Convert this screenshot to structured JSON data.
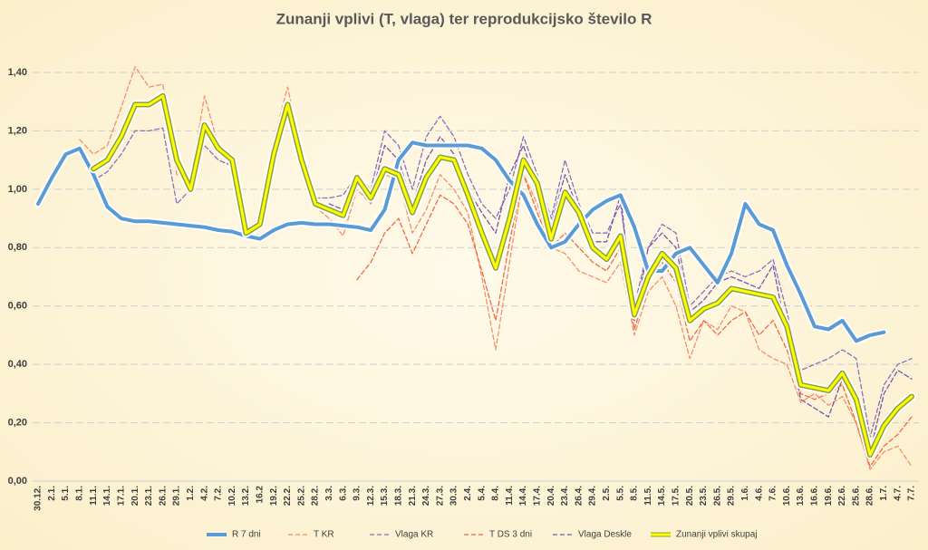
{
  "chart_data": {
    "type": "line",
    "title": "Zunanji vplivi (T, vlaga) ter reprodukcijsko število R",
    "categories": [
      "30.12.",
      "2.1.",
      "5.1.",
      "8.1.",
      "11.1.",
      "14.1.",
      "17.1.",
      "20.1.",
      "23.1.",
      "26.1.",
      "29.1.",
      "1.2.",
      "4.2.",
      "7.2.",
      "10.2.",
      "13.2.",
      "16.2",
      "19.2.",
      "22.2.",
      "25.2.",
      "28.2.",
      "3.3.",
      "6.3.",
      "9.3.",
      "12.3.",
      "15.3.",
      "18.3.",
      "21.3.",
      "24.3.",
      "27.3.",
      "30.3.",
      "2.4.",
      "5.4.",
      "8.4.",
      "11.4.",
      "14.4.",
      "17.4.",
      "20.4.",
      "23.4.",
      "26.4.",
      "29.4.",
      "2.5.",
      "5.5.",
      "8.5.",
      "11.5.",
      "14.5.",
      "17.5.",
      "20.5.",
      "23.5.",
      "26.5.",
      "29.5.",
      "1.6.",
      "4.6.",
      "7.6.",
      "10.6.",
      "13.6.",
      "16.6.",
      "19.6.",
      "22.6.",
      "25.6.",
      "28.6.",
      "1.7.",
      "4.7.",
      "7.7."
    ],
    "ylim": [
      0,
      1.4
    ],
    "yticks": [
      {
        "value": 0,
        "label": "0,00"
      },
      {
        "value": 0.2,
        "label": "0,20"
      },
      {
        "value": 0.4,
        "label": "0,40"
      },
      {
        "value": 0.6,
        "label": "0,60"
      },
      {
        "value": 0.8,
        "label": "0,80"
      },
      {
        "value": 1.0,
        "label": "1,00"
      },
      {
        "value": 1.2,
        "label": "1,20"
      },
      {
        "value": 1.4,
        "label": "1,40"
      }
    ],
    "grid": true,
    "legend": "bottom",
    "series": [
      {
        "name": "R 7 dni",
        "color": "#5b9bd5",
        "style": "thick",
        "values": [
          0.95,
          1.04,
          1.12,
          1.14,
          1.05,
          0.94,
          0.9,
          0.89,
          0.89,
          0.885,
          0.88,
          0.875,
          0.87,
          0.86,
          0.855,
          0.84,
          0.83,
          0.86,
          0.88,
          0.885,
          0.88,
          0.88,
          0.875,
          0.87,
          0.86,
          0.93,
          1.1,
          1.16,
          1.15,
          1.15,
          1.15,
          1.15,
          1.14,
          1.1,
          1.03,
          0.98,
          0.88,
          0.8,
          0.82,
          0.88,
          0.93,
          0.96,
          0.98,
          0.87,
          0.72,
          0.72,
          0.78,
          0.8,
          0.74,
          0.68,
          0.78,
          0.95,
          0.88,
          0.86,
          0.74,
          0.64,
          0.53,
          0.52,
          0.55,
          0.48,
          0.5,
          0.51,
          null,
          null
        ]
      },
      {
        "name": "T KR",
        "color": "#f4906c",
        "style": "dashed",
        "values": [
          null,
          null,
          null,
          1.17,
          1.12,
          1.15,
          1.28,
          1.42,
          1.35,
          1.36,
          1.05,
          1.03,
          1.32,
          1.15,
          1.1,
          0.86,
          0.9,
          1.17,
          1.35,
          1.12,
          0.94,
          0.9,
          0.84,
          1.0,
          0.95,
          1.05,
          1.03,
          0.85,
          0.93,
          1.05,
          1.0,
          0.92,
          0.7,
          0.45,
          0.75,
          1.05,
          0.95,
          0.8,
          0.78,
          0.72,
          0.7,
          0.68,
          0.75,
          0.5,
          0.65,
          0.7,
          0.6,
          0.42,
          0.55,
          0.52,
          0.6,
          0.58,
          0.45,
          0.42,
          0.4,
          0.27,
          0.3,
          0.26,
          0.29,
          0.2,
          0.04,
          0.1,
          0.12,
          0.05
        ]
      },
      {
        "name": "Vlaga KR",
        "color": "#8e6fbf",
        "style": "dashed",
        "values": [
          null,
          null,
          null,
          1.15,
          1.03,
          1.06,
          1.12,
          1.2,
          1.2,
          1.21,
          0.95,
          1.0,
          1.15,
          1.1,
          1.08,
          0.84,
          0.88,
          1.1,
          1.27,
          1.08,
          0.97,
          0.97,
          0.98,
          1.05,
          1.0,
          1.2,
          1.15,
          1.0,
          1.18,
          1.25,
          1.18,
          1.05,
          0.95,
          0.9,
          1.0,
          1.18,
          1.05,
          0.9,
          1.1,
          0.95,
          0.85,
          0.85,
          0.95,
          0.6,
          0.8,
          0.88,
          0.85,
          0.6,
          0.65,
          0.7,
          0.72,
          0.7,
          0.72,
          0.76,
          0.58,
          0.38,
          0.4,
          0.42,
          0.45,
          0.42,
          0.15,
          0.33,
          0.4,
          0.42
        ]
      },
      {
        "name": "T DS 3 dni",
        "color": "#f06a4a",
        "style": "dashed",
        "values": [
          null,
          null,
          null,
          null,
          null,
          null,
          null,
          null,
          null,
          null,
          null,
          null,
          null,
          null,
          null,
          null,
          null,
          null,
          null,
          null,
          null,
          null,
          null,
          0.69,
          0.75,
          0.85,
          0.9,
          0.78,
          0.88,
          0.98,
          0.95,
          0.88,
          0.72,
          0.55,
          0.82,
          1.05,
          0.92,
          0.8,
          0.85,
          0.8,
          0.75,
          0.72,
          0.8,
          0.52,
          0.68,
          0.75,
          0.68,
          0.48,
          0.55,
          0.5,
          0.55,
          0.58,
          0.5,
          0.55,
          0.45,
          0.3,
          0.28,
          0.3,
          0.33,
          0.2,
          0.05,
          0.12,
          0.16,
          0.22
        ]
      },
      {
        "name": "Vlaga Deskle",
        "color": "#7a55b0",
        "style": "dashed",
        "values": [
          null,
          null,
          null,
          null,
          null,
          null,
          null,
          null,
          null,
          null,
          null,
          null,
          null,
          null,
          null,
          null,
          null,
          null,
          null,
          null,
          null,
          0.95,
          0.93,
          1.02,
          0.97,
          1.15,
          1.1,
          0.95,
          1.1,
          1.18,
          1.12,
          1.0,
          0.92,
          0.85,
          1.05,
          1.15,
          1.0,
          0.88,
          1.05,
          0.92,
          0.82,
          0.82,
          0.98,
          0.55,
          0.8,
          0.85,
          0.8,
          0.58,
          0.62,
          0.68,
          0.7,
          0.68,
          0.66,
          0.74,
          0.5,
          0.28,
          0.25,
          0.22,
          0.35,
          0.28,
          0.1,
          0.3,
          0.38,
          0.35
        ]
      },
      {
        "name": "Zunanji vplivi skupaj",
        "color": "#ffff00",
        "style": "outlined",
        "values": [
          null,
          null,
          null,
          null,
          1.07,
          1.1,
          1.18,
          1.29,
          1.29,
          1.32,
          1.1,
          1.0,
          1.22,
          1.14,
          1.1,
          0.85,
          0.88,
          1.12,
          1.29,
          1.1,
          0.95,
          0.93,
          0.91,
          1.04,
          0.97,
          1.07,
          1.05,
          0.92,
          1.04,
          1.11,
          1.1,
          0.98,
          0.85,
          0.73,
          0.9,
          1.1,
          1.02,
          0.83,
          0.99,
          0.92,
          0.8,
          0.76,
          0.84,
          0.57,
          0.7,
          0.78,
          0.73,
          0.55,
          0.59,
          0.61,
          0.66,
          0.65,
          0.64,
          0.63,
          0.53,
          0.33,
          0.32,
          0.31,
          0.37,
          0.28,
          0.09,
          0.19,
          0.25,
          0.29
        ]
      }
    ]
  }
}
